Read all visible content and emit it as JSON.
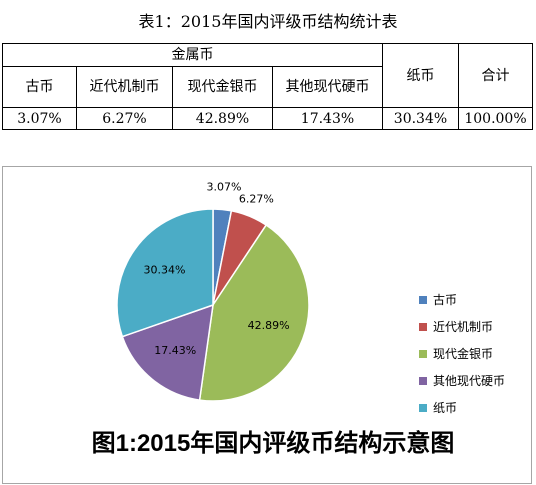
{
  "table": {
    "title": "表1：2015年国内评级币结构统计表",
    "group_header": "金属币",
    "columns": [
      "古币",
      "近代机制币",
      "现代金银币",
      "其他现代硬币",
      "纸币",
      "合计"
    ],
    "values": [
      "3.07%",
      "6.27%",
      "42.89%",
      "17.43%",
      "30.34%",
      "100.00%"
    ]
  },
  "chart_data": {
    "type": "pie",
    "title": "图1:2015年国内评级币结构示意图",
    "categories": [
      "古币",
      "近代机制币",
      "现代金银币",
      "其他现代硬币",
      "纸币"
    ],
    "values": [
      3.07,
      6.27,
      42.89,
      17.43,
      30.34
    ],
    "labels": [
      "3.07%",
      "6.27%",
      "42.89%",
      "17.43%",
      "30.34%"
    ],
    "colors": [
      "#4f81bd",
      "#c0504d",
      "#9bbb59",
      "#8064a2",
      "#4bacc6"
    ],
    "legend_position": "right"
  }
}
